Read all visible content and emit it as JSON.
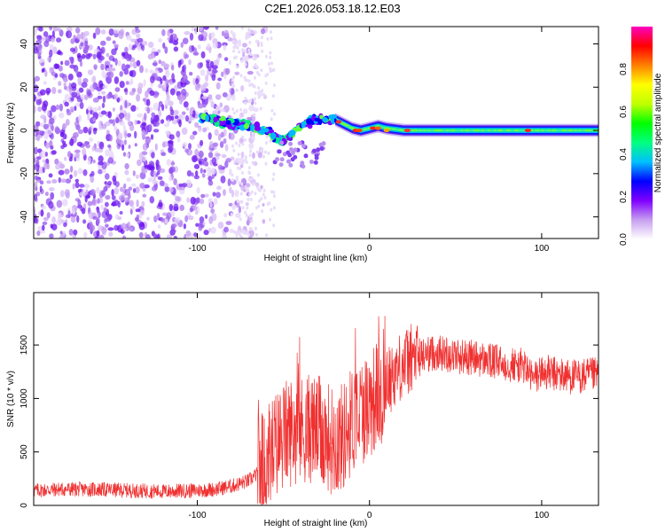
{
  "title": "C2E1.2026.053.18.12.E03",
  "chart_data": [
    {
      "type": "heatmap",
      "xlabel": "Height of straight line (km)",
      "ylabel": "Frequency (Hz)",
      "xlim": [
        -195,
        133
      ],
      "ylim": [
        -50,
        48
      ],
      "xticks": [
        -100,
        0,
        100
      ],
      "yticks": [
        -40,
        -20,
        0,
        20,
        40
      ],
      "xticklabels": [
        "-100",
        "0",
        "100"
      ],
      "yticklabels": [
        "-40",
        "-20",
        "0",
        "20",
        "40"
      ],
      "colorbar": {
        "label": "Normalized spectral amplitude",
        "range": [
          0.0,
          1.0
        ],
        "ticks": [
          0.0,
          0.2,
          0.4,
          0.6,
          0.8
        ],
        "ticklabels": [
          "0.0",
          "0.2",
          "0.4",
          "0.6",
          "0.8"
        ],
        "colors": [
          "#ffffff",
          "#c8a0f0",
          "#8000ff",
          "#0000ff",
          "#00c0ff",
          "#00ff80",
          "#00ff00",
          "#c0ff00",
          "#ffff00",
          "#ff8000",
          "#ff0000",
          "#ff00c0"
        ]
      },
      "ridge": {
        "x": [
          -95,
          -85,
          -78,
          -70,
          -60,
          -55,
          -50,
          -45,
          -40,
          -35,
          -30,
          -25,
          -20,
          -15,
          -10,
          -5,
          0,
          5,
          10,
          20,
          30,
          50,
          80,
          100,
          133
        ],
        "y": [
          6,
          4,
          3,
          2,
          0,
          -3,
          -5,
          -2,
          2,
          4,
          5,
          5,
          5,
          3,
          1,
          0,
          1,
          2,
          1,
          0,
          0,
          0,
          0,
          0,
          0
        ]
      }
    },
    {
      "type": "line",
      "xlabel": "Height of straight line (km)",
      "ylabel": "SNR (10 * v/v)",
      "xlim": [
        -195,
        133
      ],
      "ylim": [
        0,
        1990
      ],
      "xticks": [
        -100,
        0,
        100
      ],
      "yticks": [
        0,
        500,
        1000,
        1500
      ],
      "xticklabels": [
        "-100",
        "0",
        "100"
      ],
      "yticklabels": [
        "0",
        "500",
        "1000",
        "1500"
      ],
      "color": "#f03030",
      "series": [
        {
          "name": "SNR",
          "x": [
            -195,
            -180,
            -160,
            -140,
            -120,
            -100,
            -90,
            -80,
            -70,
            -65,
            -60,
            -55,
            -50,
            -45,
            -40,
            -35,
            -30,
            -25,
            -20,
            -15,
            -10,
            -5,
            0,
            5,
            10,
            15,
            20,
            25,
            30,
            35,
            40,
            50,
            60,
            70,
            80,
            90,
            95,
            100,
            110,
            120,
            133
          ],
          "values": [
            140,
            150,
            150,
            140,
            130,
            140,
            150,
            180,
            230,
            300,
            420,
            550,
            650,
            700,
            700,
            720,
            700,
            650,
            600,
            650,
            800,
            880,
            950,
            1050,
            1150,
            1250,
            1330,
            1380,
            1400,
            1420,
            1430,
            1400,
            1380,
            1350,
            1320,
            1300,
            1180,
            1250,
            1220,
            1200,
            1220
          ]
        }
      ]
    }
  ]
}
